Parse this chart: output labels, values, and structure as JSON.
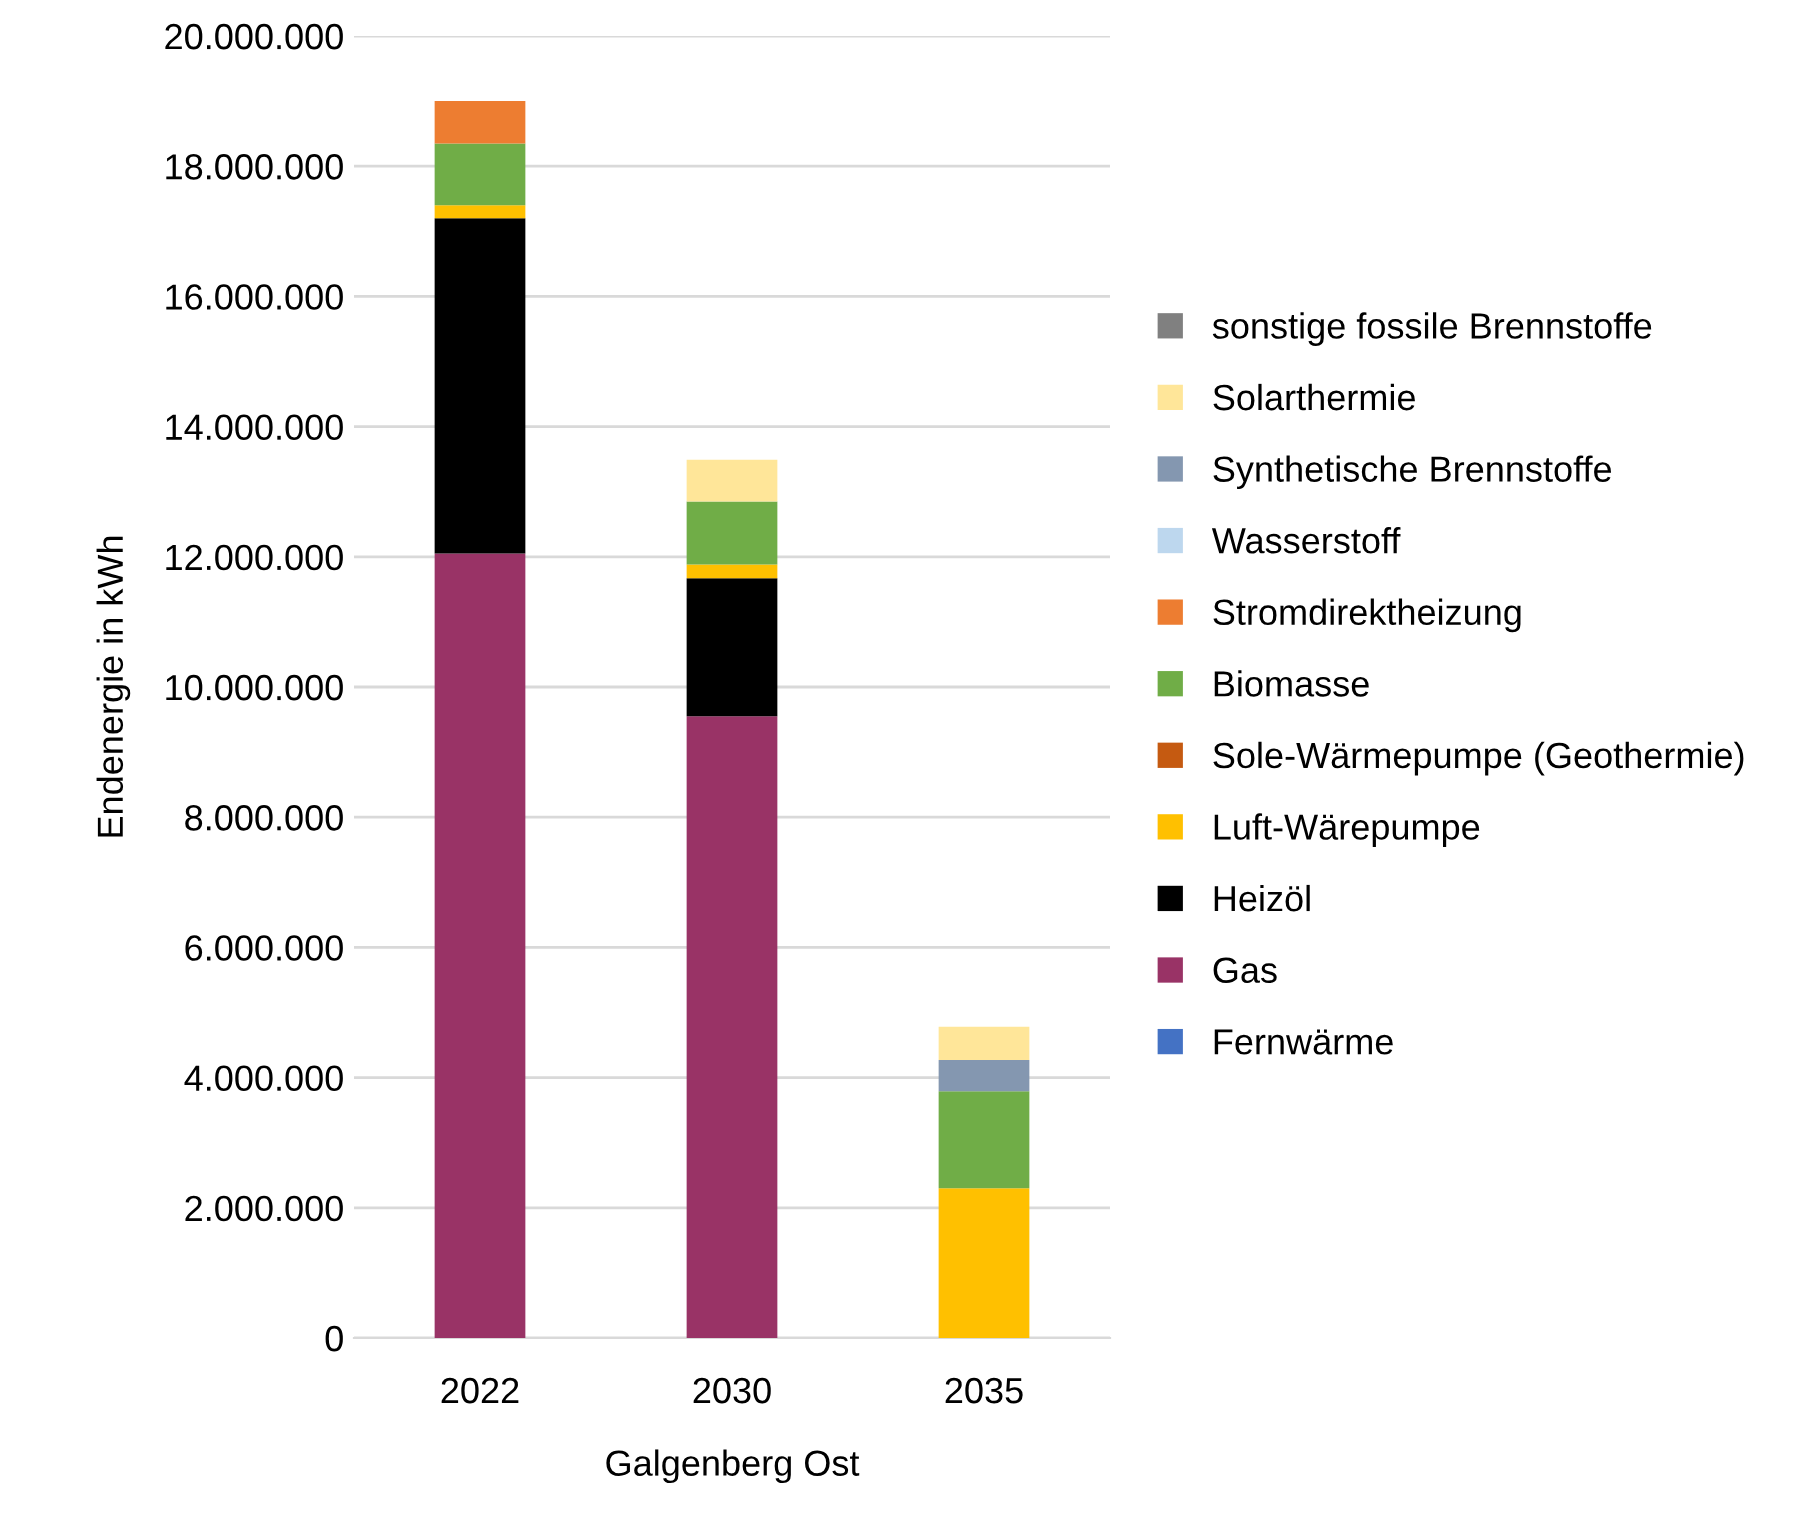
{
  "chart_data": {
    "type": "bar",
    "stacked": true,
    "ylabel": "Endenergie in kWh",
    "xlabel": "Galgenberg Ost",
    "categories": [
      "2022",
      "2030",
      "2035"
    ],
    "series": [
      {
        "name": "Fernwärme",
        "color": "#4472c4",
        "values": [
          0,
          0,
          0
        ]
      },
      {
        "name": "Gas",
        "color": "#993366",
        "values": [
          12050000,
          9550000,
          0
        ]
      },
      {
        "name": "Heizöl",
        "color": "#000000",
        "values": [
          5150000,
          2120000,
          0
        ]
      },
      {
        "name": "Luft-Wärepumpe",
        "color": "#ffc000",
        "values": [
          200000,
          210000,
          2300000
        ]
      },
      {
        "name": "Sole-Wärmepumpe (Geothermie)",
        "color": "#c55a11",
        "values": [
          0,
          0,
          0
        ]
      },
      {
        "name": "Biomasse",
        "color": "#70ad47",
        "values": [
          950000,
          970000,
          1490000
        ]
      },
      {
        "name": "Stromdirektheizung",
        "color": "#ed7d31",
        "values": [
          650000,
          0,
          0
        ]
      },
      {
        "name": "Wasserstoff",
        "color": "#bdd7ee",
        "values": [
          0,
          0,
          0
        ]
      },
      {
        "name": "Synthetische Brennstoffe",
        "color": "#8497b0",
        "values": [
          0,
          0,
          480000
        ]
      },
      {
        "name": "Solarthermie",
        "color": "#ffe699",
        "values": [
          0,
          640000,
          510000
        ]
      },
      {
        "name": "sonstige fossile Brennstoffe",
        "color": "#808080",
        "values": [
          0,
          0,
          0
        ]
      }
    ],
    "ylim": [
      0,
      20000000
    ],
    "yticks": [
      {
        "value": 0,
        "label": "0"
      },
      {
        "value": 2000000,
        "label": "2.000.000"
      },
      {
        "value": 4000000,
        "label": "4.000.000"
      },
      {
        "value": 6000000,
        "label": "6.000.000"
      },
      {
        "value": 8000000,
        "label": "8.000.000"
      },
      {
        "value": 10000000,
        "label": "10.000.000"
      },
      {
        "value": 12000000,
        "label": "12.000.000"
      },
      {
        "value": 14000000,
        "label": "14.000.000"
      },
      {
        "value": 16000000,
        "label": "16.000.000"
      },
      {
        "value": 18000000,
        "label": "18.000.000"
      },
      {
        "value": 20000000,
        "label": "20.000.000"
      }
    ],
    "grid": "y",
    "legend": "right"
  }
}
